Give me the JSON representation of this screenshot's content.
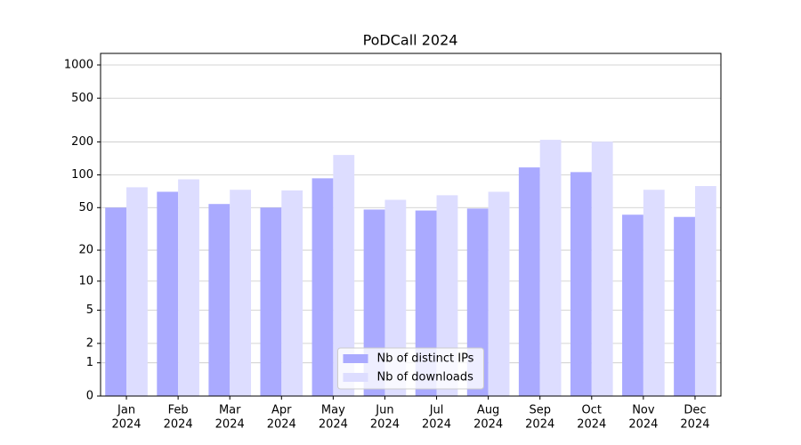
{
  "chart_data": {
    "type": "bar",
    "title": "PoDCall 2024",
    "categories": [
      [
        "Jan",
        "2024"
      ],
      [
        "Feb",
        "2024"
      ],
      [
        "Mar",
        "2024"
      ],
      [
        "Apr",
        "2024"
      ],
      [
        "May",
        "2024"
      ],
      [
        "Jun",
        "2024"
      ],
      [
        "Jul",
        "2024"
      ],
      [
        "Aug",
        "2024"
      ],
      [
        "Sep",
        "2024"
      ],
      [
        "Oct",
        "2024"
      ],
      [
        "Nov",
        "2024"
      ],
      [
        "Dec",
        "2024"
      ]
    ],
    "series": [
      {
        "name": "Nb of distinct IPs",
        "color": "#aaaaff",
        "values": [
          50,
          70,
          54,
          50,
          93,
          48,
          47,
          49,
          117,
          106,
          43,
          41
        ]
      },
      {
        "name": "Nb of downloads",
        "color": "#ddddff",
        "values": [
          77,
          91,
          73,
          72,
          152,
          59,
          65,
          70,
          209,
          201,
          73,
          79
        ]
      }
    ],
    "yscale": "log1p",
    "ylim": [
      0,
      1273
    ],
    "yticks": [
      0,
      1,
      2,
      5,
      10,
      20,
      50,
      100,
      200,
      500,
      1000
    ],
    "grid": true,
    "legend": "lower center"
  }
}
